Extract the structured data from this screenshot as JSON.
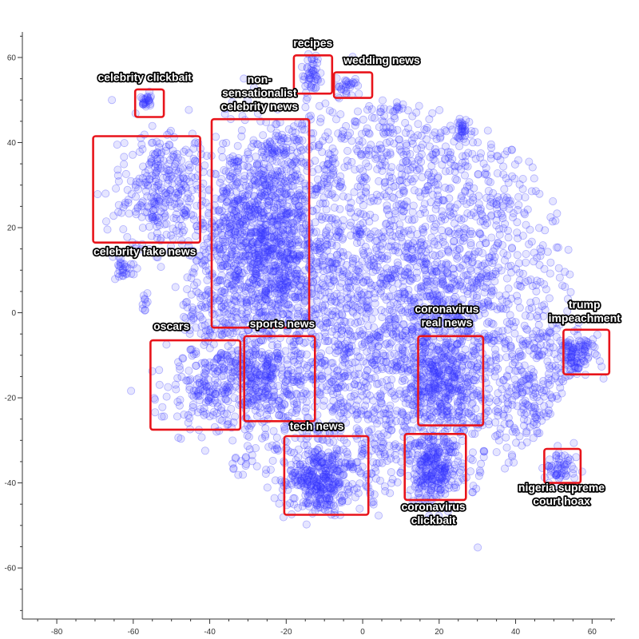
{
  "chart_data": {
    "type": "scatter",
    "title": "",
    "xlabel": "",
    "ylabel": "",
    "xlim": [
      -89,
      66
    ],
    "ylim": [
      -72,
      66
    ],
    "x_ticks": [
      -80,
      -60,
      -40,
      -20,
      0,
      20,
      40,
      60
    ],
    "y_ticks": [
      60,
      40,
      20,
      0,
      -20,
      -40,
      -60
    ],
    "grid": false,
    "legend": "none",
    "point_color": "#3333ff",
    "box_color": "#e8141b",
    "approx_point_count": 6000,
    "density_regions": [
      {
        "cx": 5,
        "cy": 5,
        "sx": 20,
        "sy": 19,
        "w": 0.38
      },
      {
        "cx": 25,
        "cy": 5,
        "sx": 15,
        "sy": 21,
        "w": 0.18
      },
      {
        "cx": -25,
        "cy": 18,
        "sx": 10,
        "sy": 20,
        "w": 0.16
      },
      {
        "cx": -5,
        "cy": -25,
        "sx": 18,
        "sy": 12,
        "w": 0.12
      },
      {
        "cx": 45,
        "cy": -20,
        "sx": 9,
        "sy": 12,
        "w": 0.06
      },
      {
        "cx": -40,
        "cy": 8,
        "sx": 8,
        "sy": 12,
        "w": 0.05
      },
      {
        "cx": 10,
        "cy": 40,
        "sx": 14,
        "sy": 7,
        "w": 0.05
      }
    ],
    "clusters": [
      {
        "label": "recipes",
        "cx": -13.5,
        "cy": 56,
        "sx": 1.6,
        "sy": 2.5,
        "n": 50,
        "box": [
          -18,
          51.5,
          -8,
          60.5
        ]
      },
      {
        "label": "wedding news",
        "cx": -4.5,
        "cy": 53.5,
        "sx": 1.8,
        "sy": 1.2,
        "n": 30,
        "box": [
          -7.5,
          50.5,
          2.5,
          56.5
        ]
      },
      {
        "label": "celebrity clickbait",
        "cx": -56.5,
        "cy": 49.5,
        "sx": 0.7,
        "sy": 0.9,
        "n": 25,
        "box": [
          -59.5,
          46,
          -52,
          52.5
        ]
      },
      {
        "label": "celebrity fake news",
        "cx": -52,
        "cy": 29,
        "sx": 6,
        "sy": 7,
        "n": 320,
        "box": [
          -70.5,
          16.5,
          -42.5,
          41.5
        ]
      },
      {
        "label": "non-sensationalist celebrity news",
        "cx": -25.5,
        "cy": 20,
        "sx": 7,
        "sy": 13,
        "n": 650,
        "box": [
          -39.5,
          -3.5,
          -14,
          45.5
        ]
      },
      {
        "label": "oscars",
        "cx": -42,
        "cy": -18,
        "sx": 6,
        "sy": 5,
        "n": 150,
        "box": [
          -55.5,
          -27.5,
          -32,
          -6.5
        ]
      },
      {
        "label": "sports news",
        "cx": -26.5,
        "cy": -16,
        "sx": 5,
        "sy": 6,
        "n": 250,
        "box": [
          -31,
          -25.5,
          -12.5,
          -5.5
        ]
      },
      {
        "label": "coronavirus real news",
        "cx": 20,
        "cy": -16,
        "sx": 5,
        "sy": 6,
        "n": 320,
        "box": [
          14.5,
          -26.5,
          31.5,
          -5.5
        ]
      },
      {
        "label": "trump impeachment",
        "cx": 56,
        "cy": -10,
        "sx": 2.8,
        "sy": 2.5,
        "n": 120,
        "box": [
          52.5,
          -14.5,
          64.5,
          -4
        ]
      },
      {
        "label": "tech news",
        "cx": -11.5,
        "cy": -39,
        "sx": 5,
        "sy": 4,
        "n": 320,
        "box": [
          -20.5,
          -47.5,
          1.5,
          -29
        ]
      },
      {
        "label": "coronavirus clickbait",
        "cx": 18.5,
        "cy": -37,
        "sx": 3.5,
        "sy": 4,
        "n": 260,
        "box": [
          11,
          -44,
          27,
          -28.5
        ]
      },
      {
        "label": "nigeria supreme court hoax",
        "cx": 51.5,
        "cy": -36.5,
        "sx": 2,
        "sy": 2,
        "n": 60,
        "box": [
          47.5,
          -40,
          57,
          -32
        ]
      },
      {
        "label": "",
        "cx": -62,
        "cy": 11,
        "sx": 1.5,
        "sy": 1.5,
        "n": 30
      },
      {
        "label": "",
        "cx": -57,
        "cy": 2.5,
        "sx": 0.4,
        "sy": 1.2,
        "n": 10
      },
      {
        "label": "",
        "cx": 26,
        "cy": 43,
        "sx": 1.2,
        "sy": 1.6,
        "n": 30
      },
      {
        "label": "",
        "cx": -32,
        "cy": -35,
        "sx": 1.3,
        "sy": 1.3,
        "n": 12
      },
      {
        "label": "",
        "cx": 30,
        "cy": -55,
        "sx": 0.2,
        "sy": 0.2,
        "n": 1
      },
      {
        "label": "",
        "cx": 9,
        "cy": 48,
        "sx": 0.4,
        "sy": 0.4,
        "n": 3
      }
    ],
    "annotations": [
      {
        "text": "recipes",
        "lines": [
          "recipes"
        ],
        "x": -13,
        "y": 62.5
      },
      {
        "text": "wedding news",
        "lines": [
          "wedding news"
        ],
        "x": 5,
        "y": 58.5
      },
      {
        "text": "celebrity clickbait",
        "lines": [
          "celebrity clickbait"
        ],
        "x": -57,
        "y": 54.5
      },
      {
        "text": "non-sensationalist celebrity news",
        "lines": [
          "non-",
          "sensationalist",
          "celebrity news"
        ],
        "x": -27,
        "y": 54
      },
      {
        "text": "celebrity fake news",
        "lines": [
          "celebrity fake news"
        ],
        "x": -57,
        "y": 13.5
      },
      {
        "text": "trump impeachment",
        "lines": [
          "trump",
          "impeachment"
        ],
        "x": 58,
        "y": 1
      },
      {
        "text": "coronavirus real news",
        "lines": [
          "coronavirus",
          "real news"
        ],
        "x": 22,
        "y": 0
      },
      {
        "text": "oscars",
        "lines": [
          "oscars"
        ],
        "x": -50,
        "y": -4
      },
      {
        "text": "sports news",
        "lines": [
          "sports news"
        ],
        "x": -21,
        "y": -3.5
      },
      {
        "text": "tech news",
        "lines": [
          "tech news"
        ],
        "x": -12,
        "y": -27.5
      },
      {
        "text": "nigeria supreme court hoax",
        "lines": [
          "nigeria supreme",
          "court hoax"
        ],
        "x": 52,
        "y": -42
      },
      {
        "text": "coronavirus clickbait",
        "lines": [
          "coronavirus",
          "clickbait"
        ],
        "x": 18.5,
        "y": -46.5
      }
    ]
  }
}
